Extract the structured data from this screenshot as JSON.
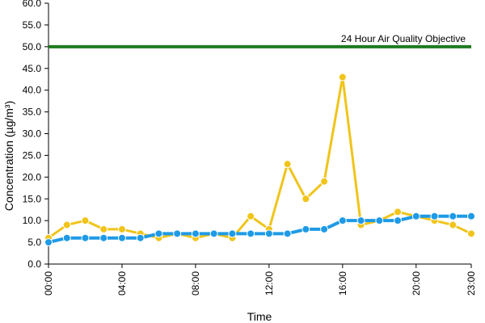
{
  "chart_data": {
    "type": "line",
    "title": "",
    "xlabel": "Time",
    "ylabel": "Concentration (µg/m³)",
    "ylim": [
      0,
      60
    ],
    "y_ticks": [
      "0.0",
      "5.0",
      "10.0",
      "15.0",
      "20.0",
      "25.0",
      "30.0",
      "35.0",
      "40.0",
      "45.0",
      "50.0",
      "55.0",
      "60.0"
    ],
    "x_tick_labels": [
      "00:00",
      "04:00",
      "08:00",
      "12:00",
      "16:00",
      "20:00",
      "23:00"
    ],
    "x": [
      "00:00",
      "01:00",
      "02:00",
      "03:00",
      "04:00",
      "05:00",
      "06:00",
      "07:00",
      "08:00",
      "09:00",
      "10:00",
      "11:00",
      "12:00",
      "13:00",
      "14:00",
      "15:00",
      "16:00",
      "17:00",
      "18:00",
      "19:00",
      "20:00",
      "21:00",
      "22:00",
      "23:00"
    ],
    "grid": false,
    "legend": "none",
    "series": [
      {
        "color": "#f0c419",
        "values": [
          6,
          9,
          10,
          8,
          8,
          7,
          6,
          7,
          6,
          7,
          6,
          11,
          8,
          23,
          15,
          19,
          43,
          9,
          10,
          12,
          11,
          10,
          9,
          7
        ]
      },
      {
        "color": "#1e9ae6",
        "values": [
          5,
          6,
          6,
          6,
          6,
          6,
          7,
          7,
          7,
          7,
          7,
          7,
          7,
          7,
          8,
          8,
          10,
          10,
          10,
          10,
          11,
          11,
          11,
          11
        ]
      }
    ],
    "objective": {
      "value": 50,
      "label": "24 Hour Air Quality Objective",
      "color": "#1f7a1f"
    }
  }
}
